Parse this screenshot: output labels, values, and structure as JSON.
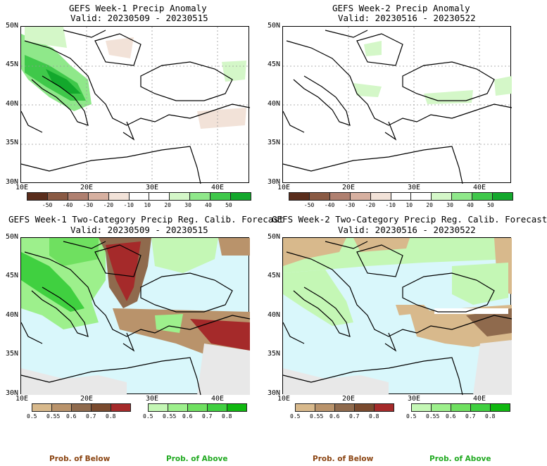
{
  "panels": [
    {
      "title": "GEFS Week-1 Precip Anomaly",
      "valid": "Valid: 20230509 - 20230515"
    },
    {
      "title": "GEFS Week-2 Precip Anomaly",
      "valid": "Valid: 20230516 - 20230522"
    },
    {
      "title": "GEFS Week-1 Two-Category Precip Reg. Calib. Forecast",
      "valid": "Valid: 20230509 - 20230515"
    },
    {
      "title": "GEFS Week-2 Two-Category Precip Reg. Calib. Forecast",
      "valid": "Valid: 20230516 - 20230522"
    }
  ],
  "axes": {
    "lat_labels": [
      "50N",
      "45N",
      "40N",
      "35N",
      "30N"
    ],
    "lon_labels": [
      "10E",
      "20E",
      "30E",
      "40E"
    ]
  },
  "anomaly_colorbar": {
    "colors": [
      "#5a2d1c",
      "#8a5a44",
      "#b08070",
      "#d7b0a0",
      "#f2e2d8",
      "#ffffff",
      "#ffffff",
      "#d4f7c8",
      "#8fe88a",
      "#3fc84a",
      "#13a82c"
    ],
    "labels": [
      "-50",
      "-40",
      "-30",
      "-20",
      "-10",
      "10",
      "20",
      "30",
      "40",
      "50"
    ]
  },
  "prob_colorbar": {
    "below_colors": [
      "#d8b98c",
      "#b9936b",
      "#8f6a4d",
      "#7a4a2e",
      "#a52a2a"
    ],
    "above_colors": [
      "#c4f7b5",
      "#9df08c",
      "#6fe060",
      "#40d040",
      "#10b810"
    ],
    "labels": [
      "0.5",
      "0.55",
      "0.6",
      "0.7",
      "0.8"
    ]
  },
  "legend": {
    "below": "Prob. of Below",
    "above": "Prob. of Above"
  },
  "colors": {
    "below_text": "#8b4513",
    "above_text": "#22aa22",
    "sea": "#d9f7fb",
    "missing": "#e8e8e8"
  }
}
